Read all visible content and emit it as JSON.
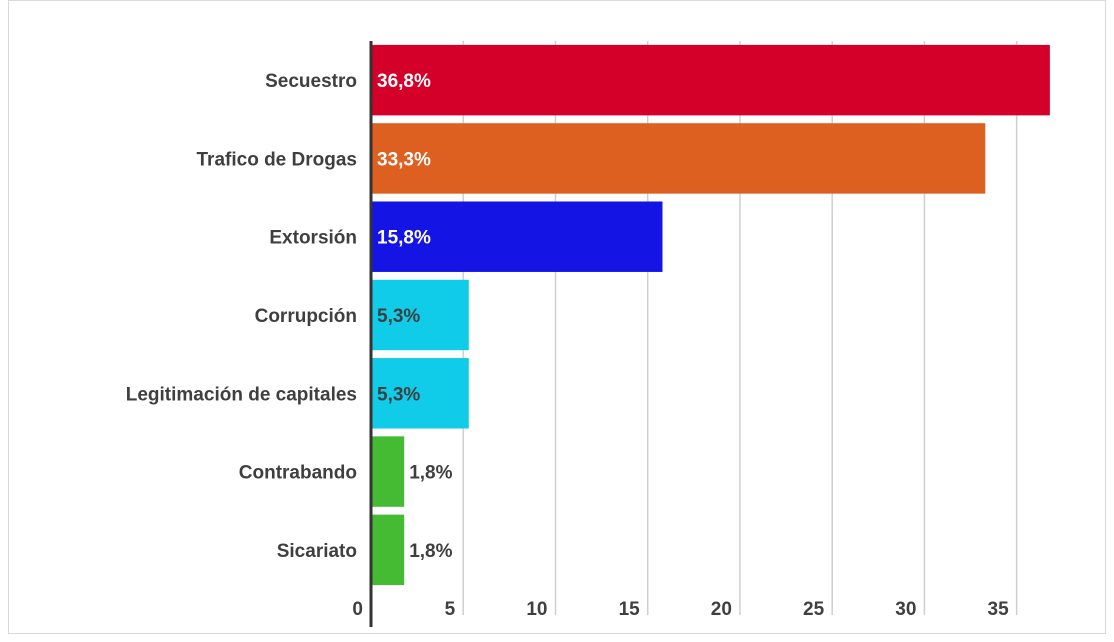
{
  "chart_data": {
    "type": "bar",
    "orientation": "horizontal",
    "title": "",
    "xlabel": "",
    "ylabel": "",
    "xlim": [
      0,
      38
    ],
    "x_ticks": [
      0,
      5,
      10,
      15,
      20,
      25,
      30,
      35
    ],
    "x_tick_labels": [
      "0",
      "5",
      "10",
      "15",
      "20",
      "25",
      "30",
      "35"
    ],
    "grid": "vertical",
    "legend": "none",
    "categories": [
      "Secuestro",
      "Trafico de Drogas",
      "Extorsión",
      "Corrupción",
      "Legitimación de capitales",
      "Contrabando",
      "Sicariato"
    ],
    "values": [
      36.8,
      33.3,
      15.8,
      5.3,
      5.3,
      1.8,
      1.8
    ],
    "data_labels": [
      "36,8%",
      "33,3%",
      "15,8%",
      "5,3%",
      "5,3%",
      "1,8%",
      "1,8%"
    ],
    "colors": [
      "#d4002a",
      "#dd6020",
      "#1414e4",
      "#11cce8",
      "#11cce8",
      "#45bb33",
      "#45bb33"
    ],
    "label_colors": [
      "#ffffff",
      "#ffffff",
      "#ffffff",
      "#3f3f3f",
      "#3f3f3f",
      "#3f3f3f",
      "#3f3f3f"
    ]
  }
}
